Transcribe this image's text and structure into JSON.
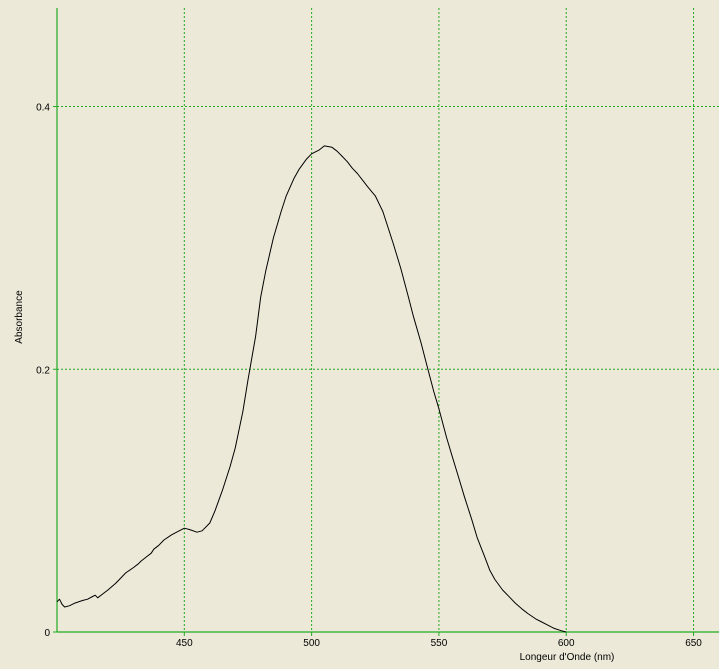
{
  "chart_data": {
    "type": "line",
    "title": "",
    "xlabel": "Longeur d'Onde (nm)",
    "ylabel": "Absorbance",
    "xlim": [
      400,
      660
    ],
    "ylim": [
      0,
      0.475
    ],
    "x_ticks": [
      450,
      500,
      550,
      600,
      650
    ],
    "x_tick_labels": [
      "450",
      "500",
      "550",
      "600",
      "650"
    ],
    "y_ticks": [
      0,
      0.2,
      0.4
    ],
    "y_tick_labels": [
      "0",
      "0.2",
      "0.4"
    ],
    "grid": true,
    "colors": {
      "background": "#ece9d8",
      "grid": "#22aa22",
      "axis": "#22aa22",
      "line": "#000000"
    },
    "series": [
      {
        "x": [
          400,
          401,
          402,
          403,
          405,
          407,
          410,
          412,
          414,
          415,
          416,
          418,
          420,
          423,
          425,
          427,
          430,
          432,
          433,
          435,
          437,
          438,
          440,
          442,
          445,
          448,
          450,
          452,
          455,
          457,
          460,
          462,
          465,
          468,
          470,
          473,
          475,
          478,
          480,
          482,
          485,
          488,
          490,
          493,
          495,
          498,
          500,
          503,
          505,
          508,
          510,
          512,
          514,
          516,
          518,
          520,
          522,
          525,
          528,
          530,
          532,
          535,
          538,
          540,
          543,
          545,
          548,
          550,
          553,
          555,
          558,
          560,
          563,
          565,
          568,
          570,
          572,
          575,
          578,
          580,
          583,
          585,
          588,
          590,
          593,
          595,
          598,
          600
        ],
        "y": [
          0.023,
          0.025,
          0.021,
          0.019,
          0.02,
          0.022,
          0.024,
          0.025,
          0.027,
          0.028,
          0.026,
          0.029,
          0.032,
          0.037,
          0.041,
          0.045,
          0.049,
          0.052,
          0.054,
          0.057,
          0.06,
          0.063,
          0.066,
          0.07,
          0.074,
          0.077,
          0.079,
          0.078,
          0.076,
          0.077,
          0.083,
          0.092,
          0.108,
          0.126,
          0.14,
          0.168,
          0.192,
          0.225,
          0.255,
          0.275,
          0.3,
          0.32,
          0.332,
          0.345,
          0.352,
          0.36,
          0.364,
          0.367,
          0.37,
          0.369,
          0.366,
          0.362,
          0.358,
          0.353,
          0.349,
          0.344,
          0.339,
          0.332,
          0.32,
          0.308,
          0.296,
          0.277,
          0.255,
          0.24,
          0.22,
          0.205,
          0.183,
          0.17,
          0.148,
          0.135,
          0.116,
          0.103,
          0.085,
          0.072,
          0.057,
          0.047,
          0.04,
          0.032,
          0.026,
          0.022,
          0.017,
          0.014,
          0.01,
          0.008,
          0.005,
          0.003,
          0.001,
          0.0
        ]
      }
    ]
  }
}
